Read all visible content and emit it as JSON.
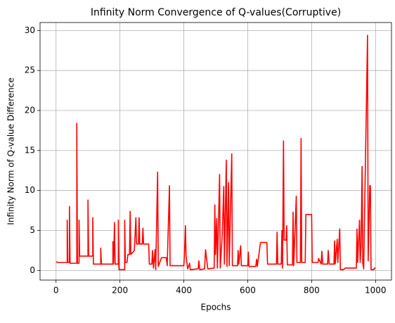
{
  "chart_data": {
    "type": "line",
    "title": "Infinity Norm Convergence of Q-values(Corruptive)",
    "xlabel": "Epochs",
    "ylabel": "Infinity Norm of Q-value Difference",
    "xlim": [
      -50,
      1050
    ],
    "ylim": [
      -1.2,
      31
    ],
    "xticks": [
      0,
      200,
      400,
      600,
      800,
      1000
    ],
    "yticks": [
      0,
      5,
      10,
      15,
      20,
      25,
      30
    ],
    "grid": true,
    "series": [
      {
        "color": "#ff0000",
        "x": [
          0,
          5,
          35,
          35,
          37,
          42,
          42,
          44,
          65,
          65,
          67,
          72,
          72,
          74,
          100,
          100,
          102,
          115,
          115,
          117,
          140,
          140,
          142,
          178,
          178,
          180,
          183,
          185,
          195,
          195,
          197,
          215,
          215,
          217,
          222,
          225,
          230,
          232,
          234,
          245,
          250,
          252,
          258,
          260,
          262,
          270,
          272,
          274,
          290,
          292,
          300,
          302,
          305,
          310,
          312,
          318,
          320,
          330,
          345,
          348,
          355,
          357,
          400,
          402,
          405,
          407,
          412,
          418,
          420,
          445,
          447,
          450,
          465,
          468,
          475,
          495,
          497,
          499,
          503,
          505,
          512,
          514,
          520,
          525,
          527,
          533,
          535,
          540,
          542,
          550,
          552,
          568,
          570,
          572,
          578,
          580,
          600,
          602,
          604,
          625,
          628,
          630,
          640,
          660,
          662,
          690,
          692,
          694,
          705,
          707,
          709,
          712,
          714,
          720,
          722,
          724,
          740,
          742,
          744,
          752,
          754,
          765,
          767,
          769,
          780,
          782,
          800,
          802,
          820,
          822,
          830,
          832,
          835,
          850,
          852,
          855,
          870,
          872,
          874,
          880,
          882,
          888,
          890,
          900,
          905,
          940,
          942,
          944,
          950,
          952,
          955,
          958,
          960,
          963,
          975,
          977,
          982,
          984,
          986,
          995,
          997,
          1000
        ],
        "values": [
          1.1,
          1.0,
          1.0,
          6.3,
          1.0,
          1.0,
          8.0,
          0.9,
          0.9,
          18.4,
          0.9,
          0.9,
          6.3,
          1.8,
          1.8,
          8.8,
          1.8,
          1.8,
          6.6,
          0.8,
          0.8,
          2.8,
          0.8,
          0.8,
          3.6,
          0.8,
          6.0,
          0.8,
          0.8,
          6.3,
          0.1,
          0.1,
          6.3,
          1.0,
          1.0,
          2.0,
          2.0,
          7.4,
          2.0,
          2.5,
          6.6,
          3.3,
          3.3,
          6.6,
          3.3,
          3.3,
          5.3,
          3.3,
          3.3,
          0.8,
          0.8,
          2.5,
          0.3,
          2.6,
          0.1,
          12.3,
          0.5,
          1.6,
          1.6,
          0.6,
          10.6,
          0.6,
          0.6,
          2.0,
          5.6,
          1.8,
          0.2,
          0.9,
          0.1,
          0.2,
          1.2,
          0.1,
          0.2,
          2.6,
          0.2,
          0.3,
          8.2,
          2.0,
          6.5,
          0.3,
          12.0,
          0.3,
          4.2,
          10.5,
          0.8,
          13.8,
          0.5,
          11.0,
          0.6,
          14.6,
          0.6,
          0.6,
          2.5,
          0.8,
          3.1,
          0.6,
          0.6,
          2.3,
          0.5,
          0.5,
          1.4,
          0.5,
          3.5,
          3.5,
          0.8,
          0.8,
          4.8,
          0.8,
          0.8,
          5.0,
          0.3,
          16.2,
          3.8,
          3.8,
          5.6,
          0.7,
          0.7,
          7.3,
          0.6,
          9.3,
          1.0,
          1.0,
          16.5,
          1.0,
          1.0,
          7.0,
          7.0,
          1.0,
          1.0,
          1.5,
          0.8,
          2.4,
          0.8,
          0.8,
          2.5,
          0.8,
          0.8,
          3.7,
          0.8,
          3.9,
          1.0,
          5.2,
          0.1,
          0.1,
          0.3,
          0.3,
          5.2,
          1.0,
          6.3,
          1.0,
          3.2,
          13.0,
          1.0,
          0.2,
          29.4,
          1.2,
          10.6,
          10.6,
          0.1,
          0.1,
          0.3,
          0.3
        ]
      }
    ]
  }
}
